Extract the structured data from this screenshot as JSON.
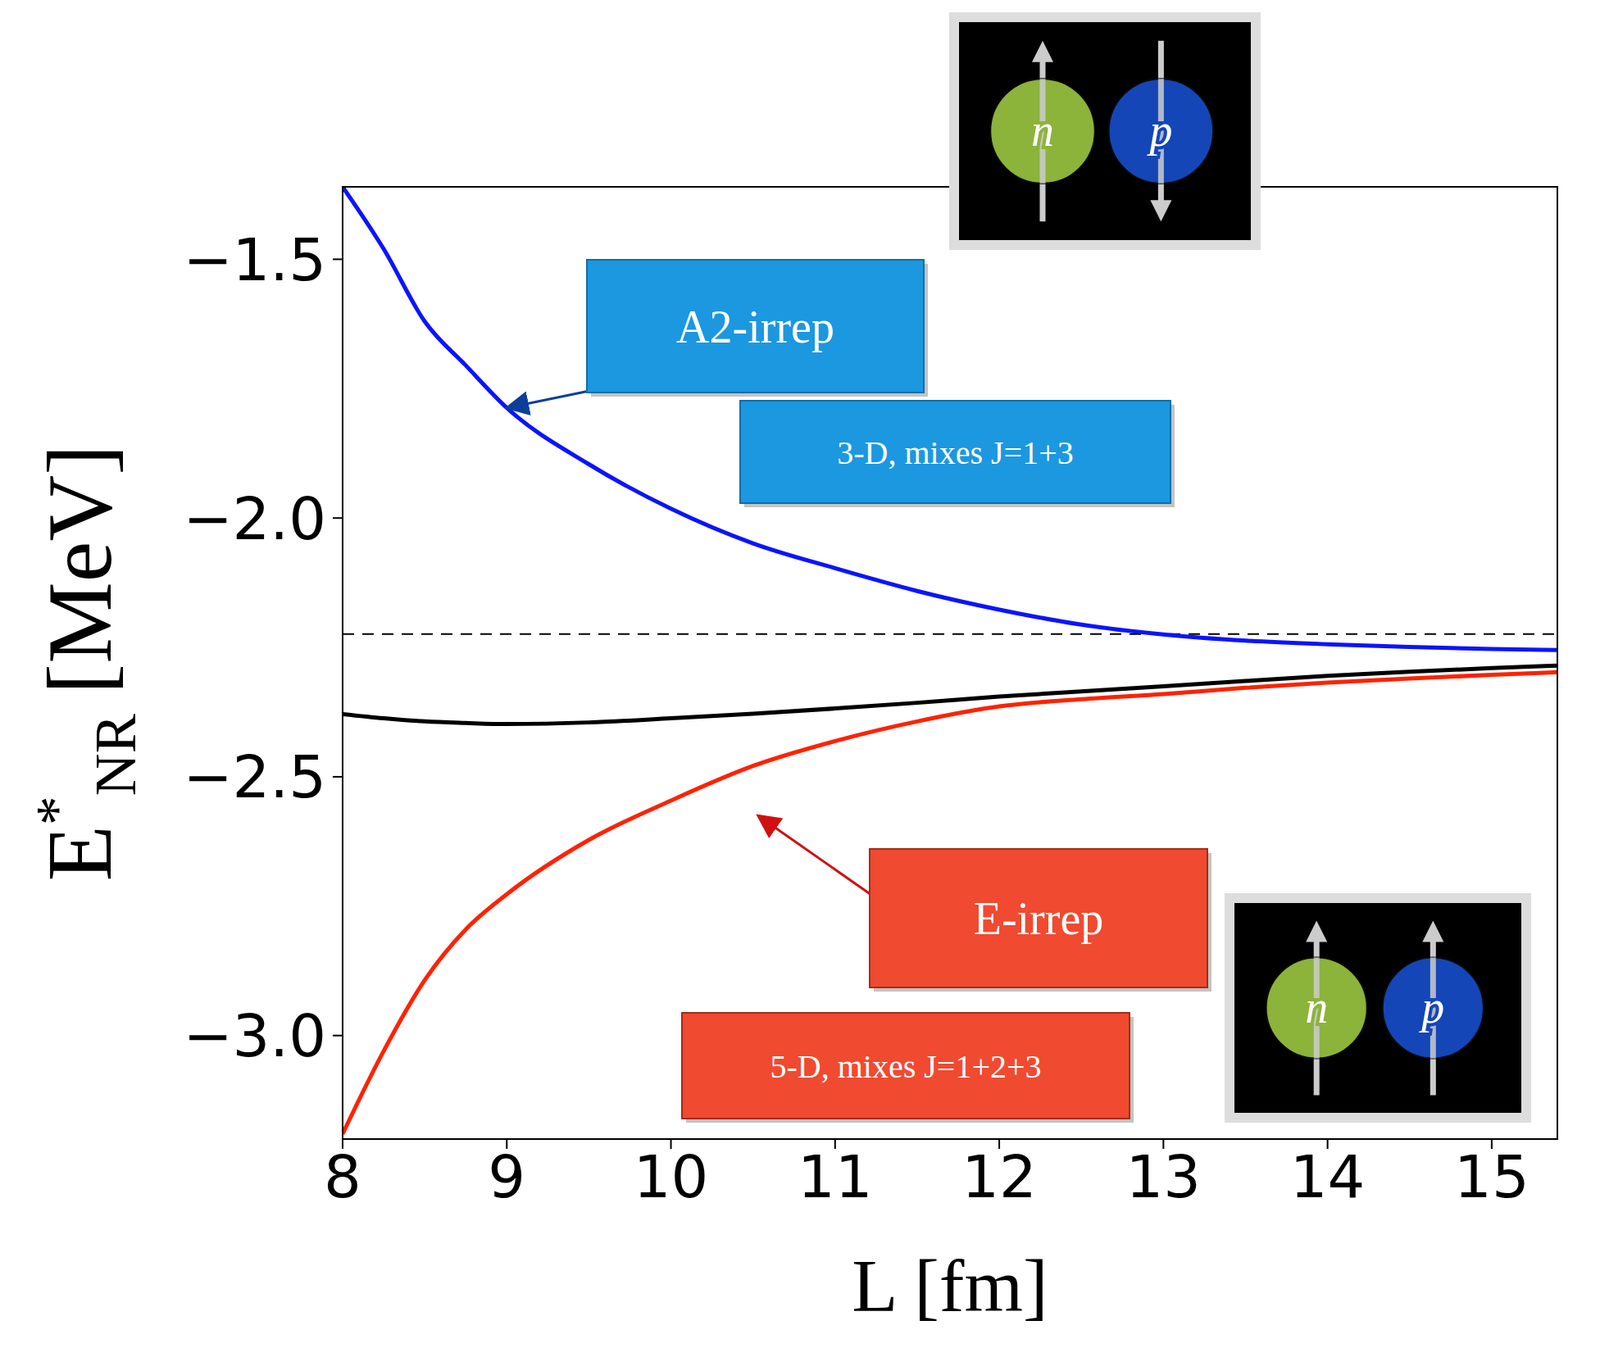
{
  "chart_data": {
    "type": "line",
    "x_label": "L [fm]",
    "y_label": {
      "base": "E",
      "sup": "*",
      "sub": "NR",
      "unit": "[MeV]"
    },
    "x": [
      8,
      8.25,
      8.5,
      8.75,
      9,
      9.5,
      10,
      10.5,
      11,
      11.5,
      12,
      12.5,
      13,
      13.5,
      14,
      14.5,
      15,
      15.4
    ],
    "series": [
      {
        "color": "#0a14ff",
        "line_style": "solid",
        "values": [
          -1.36,
          -1.48,
          -1.62,
          -1.705,
          -1.787,
          -1.896,
          -1.982,
          -2.049,
          -2.097,
          -2.141,
          -2.177,
          -2.206,
          -2.225,
          -2.237,
          -2.244,
          -2.249,
          -2.253,
          -2.255
        ]
      },
      {
        "color": "#000000",
        "line_style": "solid",
        "values": [
          -2.379,
          -2.387,
          -2.393,
          -2.396,
          -2.398,
          -2.395,
          -2.387,
          -2.378,
          -2.368,
          -2.357,
          -2.345,
          -2.335,
          -2.325,
          -2.315,
          -2.305,
          -2.297,
          -2.29,
          -2.285
        ]
      },
      {
        "color": "#ff2200",
        "line_style": "solid",
        "values": [
          -3.19,
          -3.03,
          -2.893,
          -2.795,
          -2.727,
          -2.622,
          -2.546,
          -2.479,
          -2.431,
          -2.393,
          -2.364,
          -2.35,
          -2.34,
          -2.328,
          -2.318,
          -2.31,
          -2.303,
          -2.298
        ]
      }
    ],
    "hlines": [
      {
        "y": -2.224,
        "color": "#000000",
        "line_style": "dashed"
      }
    ],
    "xlim": [
      8,
      15.4
    ],
    "xticks": [
      8,
      9,
      10,
      11,
      12,
      13,
      14,
      15
    ],
    "ylim": [
      -3.2,
      -1.36
    ],
    "yticks": [
      {
        "value": -3.0,
        "label": "−3.0"
      },
      {
        "value": -2.5,
        "label": "−2.5"
      },
      {
        "value": -2.0,
        "label": "−2.0"
      },
      {
        "value": -1.5,
        "label": "−1.5"
      }
    ],
    "grid": false,
    "annotations": [
      {
        "text": "A2-irrep",
        "color": "#1b98e0",
        "x": 9,
        "y": -1.787
      },
      {
        "text": "3-D, mixes J=1+3",
        "color": "#1b98e0"
      },
      {
        "text": "E-irrep",
        "color": "#f04a30",
        "x": 10.53,
        "y": -2.575
      },
      {
        "text": "5-D, mixes J=1+2+3",
        "color": "#f04a30"
      }
    ],
    "icon_labels": [
      "n",
      "p"
    ]
  }
}
